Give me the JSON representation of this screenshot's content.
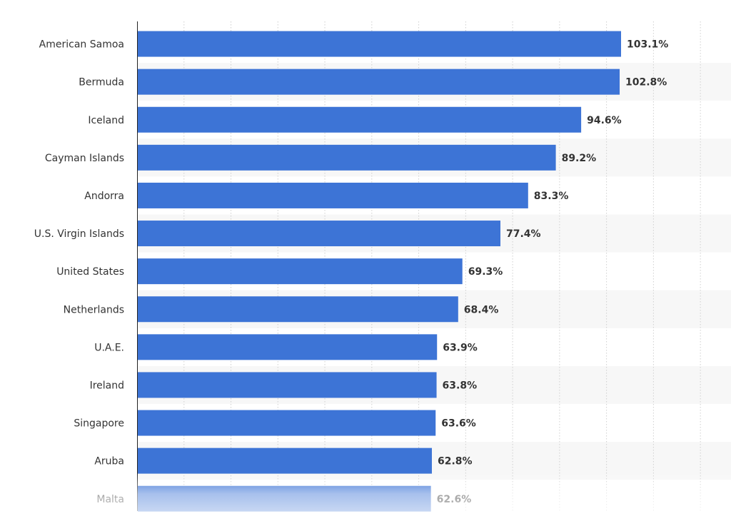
{
  "chart_data": {
    "type": "bar",
    "orientation": "horizontal",
    "categories": [
      "American Samoa",
      "Bermuda",
      "Iceland",
      "Cayman Islands",
      "Andorra",
      "U.S. Virgin Islands",
      "United States",
      "Netherlands",
      "U.A.E.",
      "Ireland",
      "Singapore",
      "Aruba",
      "Malta"
    ],
    "values": [
      103.1,
      102.8,
      94.6,
      89.2,
      83.3,
      77.4,
      69.3,
      68.4,
      63.9,
      63.8,
      63.6,
      62.8,
      62.6
    ],
    "value_labels": [
      "103.1%",
      "102.8%",
      "94.6%",
      "89.2%",
      "83.3%",
      "77.4%",
      "69.3%",
      "68.4%",
      "63.9%",
      "63.8%",
      "63.6%",
      "62.8%",
      "62.6%"
    ],
    "xlim": [
      0,
      120
    ],
    "grid": true,
    "title": "",
    "xlabel": "",
    "ylabel": ""
  },
  "colors": {
    "bar": "#3d74d6",
    "text": "#333333",
    "grid": "#cfcfcf",
    "band": "#f7f7f7",
    "axis": "#222222"
  }
}
